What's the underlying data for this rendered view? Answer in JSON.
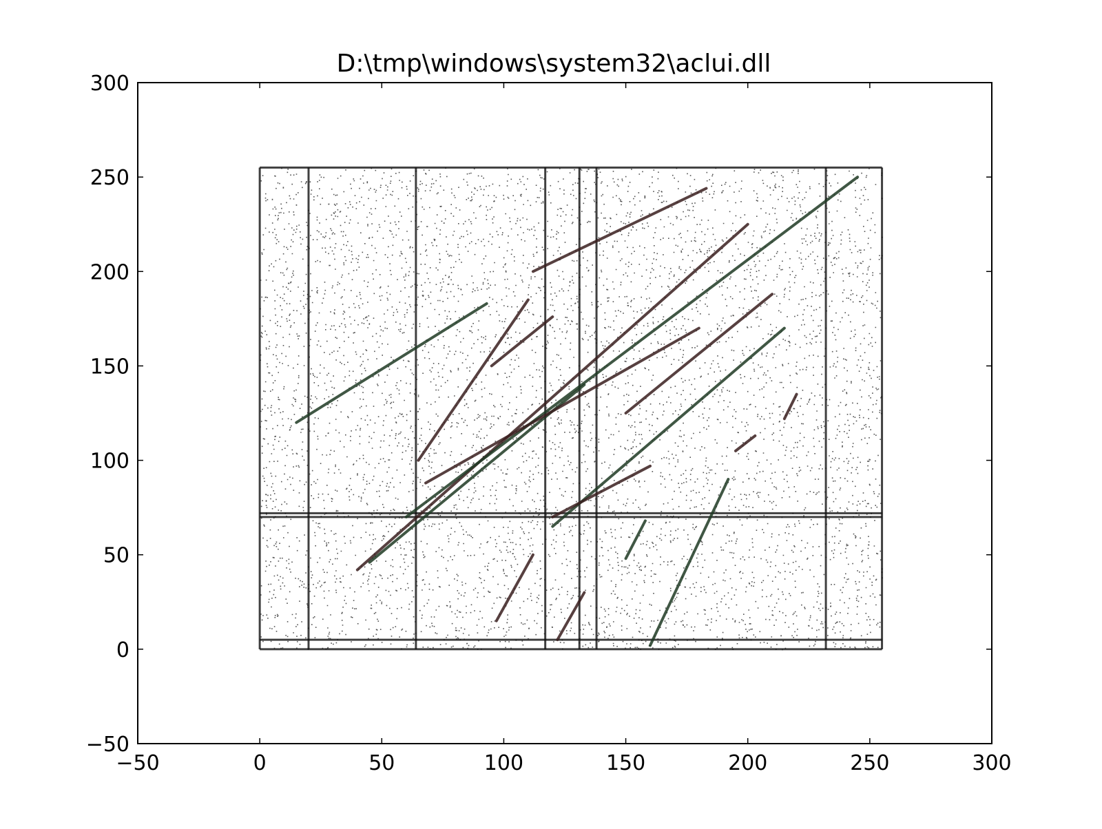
{
  "chart_data": {
    "type": "scatter",
    "title": "D:\\tmp\\windows\\system32\\aclui.dll",
    "xlabel": "",
    "ylabel": "",
    "xlim": [
      -50,
      300
    ],
    "ylim": [
      -50,
      300
    ],
    "xticks": [
      "−50",
      "0",
      "50",
      "100",
      "150",
      "200",
      "250",
      "300"
    ],
    "yticks": [
      "−50",
      "0",
      "50",
      "100",
      "150",
      "200",
      "250",
      "300"
    ],
    "xtick_values": [
      -50,
      0,
      50,
      100,
      150,
      200,
      250,
      300
    ],
    "ytick_values": [
      -50,
      0,
      50,
      100,
      150,
      200,
      250,
      300
    ],
    "grid": false,
    "legend": "none",
    "point_domain": {
      "x": [
        0,
        255
      ],
      "y": [
        0,
        255
      ]
    },
    "colors": {
      "points": "#1a1a1a",
      "frame": "#000000",
      "accent_lines": "#3a1f1f",
      "accent_lines_alt": "#1f3a24"
    },
    "series": [
      {
        "description_segments": [
          {
            "x1": 15,
            "y1": 120,
            "x2": 93,
            "y2": 183
          },
          {
            "x1": 112,
            "y1": 200,
            "x2": 183,
            "y2": 244
          },
          {
            "x1": 40,
            "y1": 42,
            "x2": 200,
            "y2": 225
          },
          {
            "x1": 60,
            "y1": 70,
            "x2": 245,
            "y2": 250
          },
          {
            "x1": 65,
            "y1": 100,
            "x2": 110,
            "y2": 185
          },
          {
            "x1": 95,
            "y1": 150,
            "x2": 120,
            "y2": 176
          },
          {
            "x1": 120,
            "y1": 65,
            "x2": 215,
            "y2": 170
          },
          {
            "x1": 120,
            "y1": 70,
            "x2": 160,
            "y2": 97
          },
          {
            "x1": 150,
            "y1": 125,
            "x2": 210,
            "y2": 188
          },
          {
            "x1": 160,
            "y1": 2,
            "x2": 192,
            "y2": 90
          },
          {
            "x1": 97,
            "y1": 15,
            "x2": 112,
            "y2": 50
          },
          {
            "x1": 122,
            "y1": 5,
            "x2": 133,
            "y2": 30
          },
          {
            "x1": 150,
            "y1": 48,
            "x2": 158,
            "y2": 68
          },
          {
            "x1": 195,
            "y1": 105,
            "x2": 203,
            "y2": 113
          },
          {
            "x1": 215,
            "y1": 122,
            "x2": 220,
            "y2": 135
          },
          {
            "x1": 45,
            "y1": 46,
            "x2": 133,
            "y2": 140
          },
          {
            "x1": 68,
            "y1": 88,
            "x2": 180,
            "y2": 170
          }
        ],
        "vertical_bands_x": [
          0,
          20,
          64,
          117,
          131,
          138,
          232,
          255
        ],
        "horizontal_bands_y": [
          0,
          5,
          70,
          72,
          255
        ]
      }
    ]
  }
}
